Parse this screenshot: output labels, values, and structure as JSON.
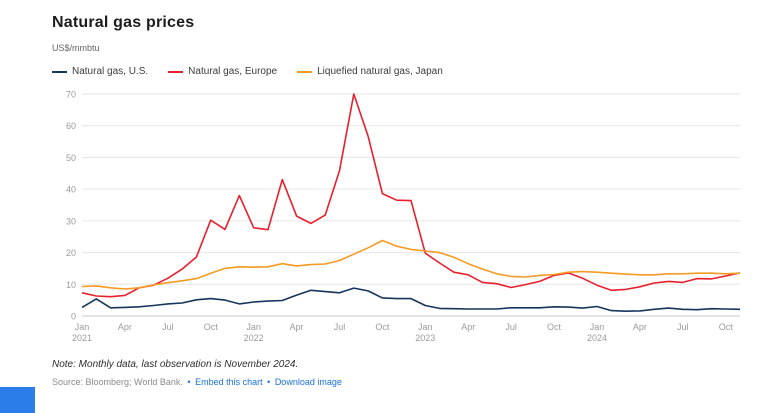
{
  "header": {
    "title": "Natural gas prices",
    "units": "US$/mmbtu"
  },
  "colors": {
    "link": "#1a6fdf",
    "corner_accent": "#2b7de9",
    "grid": "#e6e6e6",
    "axis_zero": "#c9c9c9",
    "axis_text": "#9b9b9b"
  },
  "footer": {
    "note": "Note: Monthly data, last observation is November 2024.",
    "source": "Source: Bloomberg; World Bank.",
    "separator": "•",
    "embed_link": "Embed this chart",
    "download_link": "Download image"
  },
  "chart_data": {
    "type": "line",
    "title": "Natural gas prices",
    "ylabel": "US$/mmbtu",
    "xlabel": "",
    "ylim": [
      0,
      70
    ],
    "y_ticks": [
      0,
      10,
      20,
      30,
      40,
      50,
      60,
      70
    ],
    "grid": true,
    "legend_position": "top",
    "frequency": "monthly",
    "x_start": "2021-01",
    "x_end": "2024-11",
    "x": [
      "2021-01",
      "2021-02",
      "2021-03",
      "2021-04",
      "2021-05",
      "2021-06",
      "2021-07",
      "2021-08",
      "2021-09",
      "2021-10",
      "2021-11",
      "2021-12",
      "2022-01",
      "2022-02",
      "2022-03",
      "2022-04",
      "2022-05",
      "2022-06",
      "2022-07",
      "2022-08",
      "2022-09",
      "2022-10",
      "2022-11",
      "2022-12",
      "2023-01",
      "2023-02",
      "2023-03",
      "2023-04",
      "2023-05",
      "2023-06",
      "2023-07",
      "2023-08",
      "2023-09",
      "2023-10",
      "2023-11",
      "2023-12",
      "2024-01",
      "2024-02",
      "2024-03",
      "2024-04",
      "2024-05",
      "2024-06",
      "2024-07",
      "2024-08",
      "2024-09",
      "2024-10",
      "2024-11"
    ],
    "x_ticks": [
      {
        "index": 0,
        "label": "Jan",
        "year": "2021"
      },
      {
        "index": 3,
        "label": "Apr"
      },
      {
        "index": 6,
        "label": "Jul"
      },
      {
        "index": 9,
        "label": "Oct"
      },
      {
        "index": 12,
        "label": "Jan",
        "year": "2022"
      },
      {
        "index": 15,
        "label": "Apr"
      },
      {
        "index": 18,
        "label": "Jul"
      },
      {
        "index": 21,
        "label": "Oct"
      },
      {
        "index": 24,
        "label": "Jan",
        "year": "2023"
      },
      {
        "index": 27,
        "label": "Apr"
      },
      {
        "index": 30,
        "label": "Jul"
      },
      {
        "index": 33,
        "label": "Oct"
      },
      {
        "index": 36,
        "label": "Jan",
        "year": "2024"
      },
      {
        "index": 39,
        "label": "Apr"
      },
      {
        "index": 42,
        "label": "Jul"
      },
      {
        "index": 45,
        "label": "Oct"
      }
    ],
    "series": [
      {
        "id": "us",
        "name": "Natural gas, U.S.",
        "color": "#16355c",
        "values": [
          2.7,
          5.4,
          2.6,
          2.7,
          2.9,
          3.3,
          3.8,
          4.1,
          5.1,
          5.5,
          5.0,
          3.8,
          4.4,
          4.7,
          4.9,
          6.6,
          8.1,
          7.7,
          7.3,
          8.8,
          7.9,
          5.7,
          5.5,
          5.5,
          3.3,
          2.4,
          2.3,
          2.2,
          2.2,
          2.2,
          2.6,
          2.6,
          2.6,
          2.9,
          2.8,
          2.5,
          3.0,
          1.7,
          1.5,
          1.6,
          2.1,
          2.5,
          2.1,
          2.0,
          2.3,
          2.2,
          2.1
        ]
      },
      {
        "id": "europe",
        "name": "Natural gas, Europe",
        "color": "#e8202d",
        "values": [
          7.3,
          6.3,
          6.1,
          6.5,
          8.9,
          9.7,
          11.9,
          14.8,
          18.6,
          30.2,
          27.3,
          38.0,
          27.8,
          27.2,
          43.0,
          31.5,
          29.2,
          31.8,
          45.8,
          70.0,
          56.7,
          38.6,
          36.5,
          36.4,
          19.8,
          16.7,
          13.8,
          13.0,
          10.6,
          10.2,
          9.0,
          9.9,
          10.9,
          12.8,
          13.6,
          11.9,
          9.7,
          8.1,
          8.4,
          9.2,
          10.4,
          10.9,
          10.6,
          11.8,
          11.7,
          12.6,
          13.6
        ]
      },
      {
        "id": "japan",
        "name": "Liquefied natural gas, Japan",
        "color": "#f59a23",
        "values": [
          9.3,
          9.5,
          8.9,
          8.5,
          8.9,
          9.8,
          10.5,
          11.1,
          11.8,
          13.5,
          15.0,
          15.5,
          15.4,
          15.5,
          16.5,
          15.8,
          16.2,
          16.4,
          17.5,
          19.5,
          21.5,
          23.8,
          22.0,
          21.0,
          20.5,
          20.0,
          18.5,
          16.5,
          14.8,
          13.3,
          12.5,
          12.3,
          12.8,
          13.1,
          13.8,
          14.0,
          13.8,
          13.5,
          13.2,
          13.0,
          13.0,
          13.3,
          13.3,
          13.5,
          13.5,
          13.3,
          13.5
        ]
      }
    ]
  }
}
